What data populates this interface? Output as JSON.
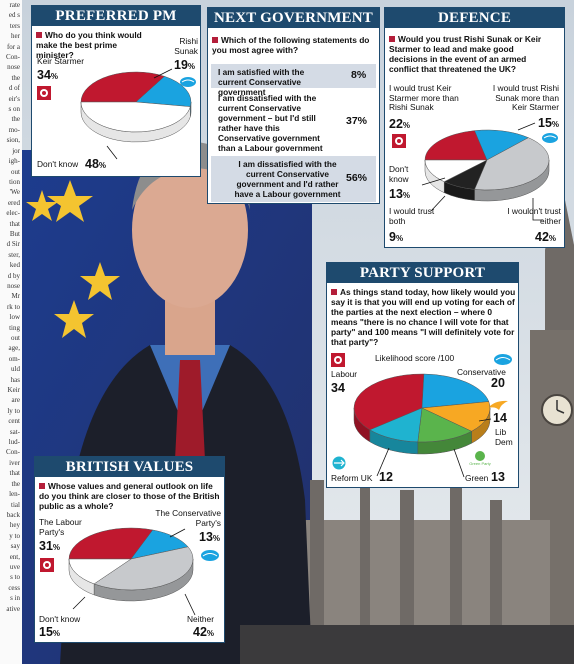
{
  "news_strip_lines": [
    "rate",
    "ed s",
    "ters",
    "her",
    "for a",
    "",
    "Con-",
    "nose",
    "the",
    "",
    "d of",
    "eir's",
    "s on",
    "the",
    "mo-",
    "",
    "sion,",
    "jor",
    "",
    "igh-",
    "out",
    "tion",
    "'We",
    "ered",
    "elec-",
    "that",
    "But",
    "",
    "d Sir",
    "ster,",
    "ked",
    "d by",
    "nose",
    "Mr",
    "",
    "rk to",
    "low",
    "ting",
    "out",
    "age,",
    "om-",
    "uld",
    "",
    "has",
    "Keir",
    "are",
    "ly to",
    "",
    "",
    "",
    "cent",
    "",
    "sat-",
    "lud-",
    "Con-",
    "iver",
    "that",
    "the",
    "len-",
    "",
    "tial",
    "back",
    "hey",
    "y to",
    "",
    "say",
    "ent,",
    "uve",
    "s to",
    "",
    "cess",
    "s in",
    "ative"
  ],
  "preferred_pm": {
    "title": "PREFERRED PM",
    "question": "Who do you think would make the best prime minister?",
    "labels": {
      "starmer": "Keir Starmer",
      "sunak": "Rishi Sunak",
      "dont_know": "Don't know"
    },
    "values_text": {
      "starmer": "34",
      "sunak": "19",
      "dont_know": "48"
    },
    "pct_sign": "%"
  },
  "next_government": {
    "title": "NEXT GOVERNMENT",
    "question": "Which of the following statements do you most agree with?",
    "rows": [
      {
        "text": "I am satisfied with the current Conservative government",
        "value": "8%"
      },
      {
        "text": "I am dissatisfied with the current Conservative government – but I'd still rather have this Conservative government than a Labour government",
        "value": "37%"
      },
      {
        "text": "I am dissatisfied with the current Conservative government and I'd rather have a Labour government",
        "value": "56%"
      }
    ]
  },
  "defence": {
    "title": "DEFENCE",
    "question": "Would you trust Rishi Sunak or Keir Starmer to lead and make good decisions in the event of an armed conflict that threatened the UK?",
    "labels": {
      "starmer": "I would trust Keir Starmer more than Rishi Sunak",
      "sunak": "I would trust Rishi Sunak more than Keir Starmer",
      "dont_know": "Don't know",
      "both": "I would trust both",
      "neither": "I wouldn't trust either"
    },
    "values_text": {
      "starmer": "22",
      "sunak": "15",
      "dont_know": "13",
      "both": "9",
      "neither": "42"
    },
    "pct_sign": "%"
  },
  "party_support": {
    "title": "PARTY SUPPORT",
    "question": "As things stand today, how likely would you say it is that you will end up voting for each of the parties at the next election – where 0 means \"there is no chance I will vote for that party\" and 100 means \"I will definitely vote for that party\"?",
    "subtitle": "Likelihood score /100",
    "labels": {
      "labour": "Labour",
      "conservative": "Conservative",
      "libdem": "Lib Dem",
      "green": "Green",
      "reform": "Reform UK"
    },
    "values_text": {
      "labour": "34",
      "conservative": "20",
      "libdem": "14",
      "green": "13",
      "reform": "12"
    },
    "green_logo_text": "Green Party"
  },
  "british_values": {
    "title": "BRITISH VALUES",
    "question": "Whose values and general outlook on life do you think are closer to those of the British public as a whole?",
    "labels": {
      "labour": "The Labour Party's",
      "conservative": "The Conservative Party's",
      "dont_know": "Don't know",
      "neither": "Neither"
    },
    "values_text": {
      "labour": "31",
      "conservative": "13",
      "dont_know": "15",
      "neither": "42"
    },
    "pct_sign": "%"
  },
  "chart_data": [
    {
      "type": "pie",
      "title": "PREFERRED PM",
      "categories": [
        "Keir Starmer",
        "Rishi Sunak",
        "Don't know"
      ],
      "values": [
        34,
        19,
        48
      ]
    },
    {
      "type": "table",
      "title": "NEXT GOVERNMENT",
      "categories": [
        "I am satisfied with the current Conservative government",
        "I am dissatisfied with the current Conservative government – but I'd still rather have this Conservative government than a Labour government",
        "I am dissatisfied with the current Conservative government and I'd rather have a Labour government"
      ],
      "values": [
        8,
        37,
        56
      ]
    },
    {
      "type": "pie",
      "title": "DEFENCE",
      "categories": [
        "I would trust Keir Starmer more than Rishi Sunak",
        "I would trust Rishi Sunak more than Keir Starmer",
        "I wouldn't trust either",
        "I would trust both",
        "Don't know"
      ],
      "values": [
        22,
        15,
        42,
        9,
        13
      ]
    },
    {
      "type": "pie",
      "title": "PARTY SUPPORT",
      "categories": [
        "Labour",
        "Conservative",
        "Lib Dem",
        "Green",
        "Reform UK"
      ],
      "values": [
        34,
        20,
        14,
        13,
        12
      ]
    },
    {
      "type": "pie",
      "title": "BRITISH VALUES",
      "categories": [
        "The Labour Party's",
        "The Conservative Party's",
        "Neither",
        "Don't know"
      ],
      "values": [
        31,
        13,
        42,
        15
      ]
    }
  ],
  "colors": {
    "labour": "#c0182f",
    "conservative": "#1aa3e0",
    "dont_know": "#ffffff",
    "neither": "#c7c9cc",
    "both": "#222222",
    "libdem": "#f7a823",
    "green": "#5ab44c",
    "reform": "#1fb3d0",
    "header": "#1e4a6e",
    "row_bg": "#d4dbe5"
  }
}
